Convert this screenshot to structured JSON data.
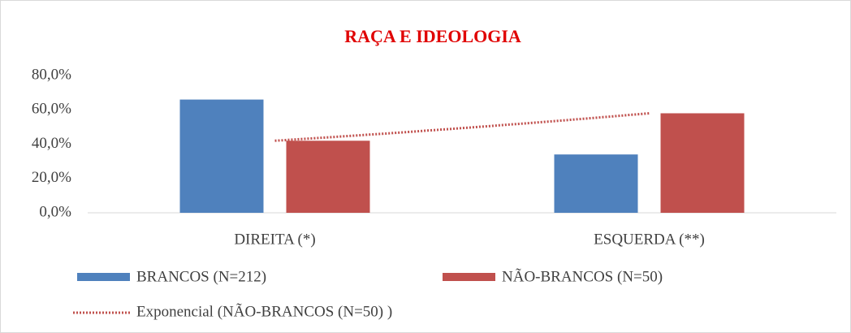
{
  "chart_data": {
    "type": "bar",
    "title": "RAÇA E IDEOLOGIA",
    "categories": [
      "DIREITA (*)",
      "ESQUERDA (**)"
    ],
    "series": [
      {
        "name": "BRANCOS (N=212)",
        "color": "#4f81bd",
        "values": [
          66,
          34
        ]
      },
      {
        "name": "NÃO-BRANCOS  (N=50)",
        "color": "#c0504d",
        "values": [
          42,
          58
        ]
      }
    ],
    "trendline": {
      "type": "exponential",
      "series": 1,
      "name": "Exponencial (NÃO-BRANCOS  (N=50) )",
      "color": "#c0504d"
    },
    "ylim": [
      0,
      80
    ],
    "yticks": [
      {
        "value": 0,
        "label": "0,0%"
      },
      {
        "value": 20,
        "label": "20,0%"
      },
      {
        "value": 40,
        "label": "40,0%"
      },
      {
        "value": 60,
        "label": "60,0%"
      },
      {
        "value": 80,
        "label": "80,0%"
      }
    ],
    "grid": false
  }
}
